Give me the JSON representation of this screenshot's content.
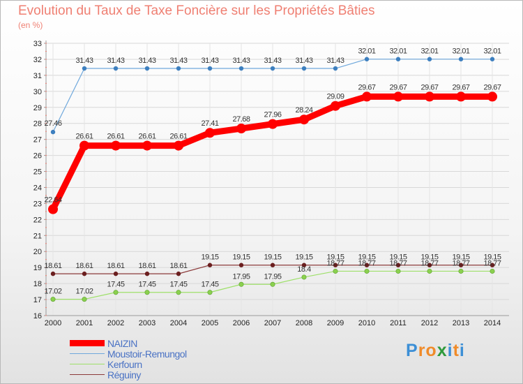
{
  "title": "Evolution du Taux de Taxe Foncière sur les Propriétés Bâties",
  "subtitle": "(en %)",
  "brand": {
    "letters": [
      "P",
      "r",
      "o",
      "x",
      "i",
      "t",
      "i"
    ],
    "colors": [
      "#3c8fd6",
      "#f08b2a",
      "#f08b2a",
      "#2f9a3c",
      "#3c8fd6",
      "#f08b2a",
      "#3c8fd6"
    ]
  },
  "chart_data": {
    "type": "line",
    "title": "Evolution du Taux de Taxe Foncière sur les Propriétés Bâties",
    "ylabel": "(en %)",
    "xlabel": "",
    "ylim": [
      16,
      33
    ],
    "yticks": [
      "16",
      "17",
      "18",
      "19",
      "20",
      "21",
      "22",
      "23",
      "24",
      "25",
      "26",
      "27",
      "28",
      "29",
      "30",
      "31",
      "32",
      "33"
    ],
    "x": [
      "2000",
      "2001",
      "2002",
      "2003",
      "2004",
      "2005",
      "2006",
      "2007",
      "2008",
      "2009",
      "2010",
      "2011",
      "2012",
      "2013",
      "2014"
    ],
    "series": [
      {
        "name": "NAIZIN",
        "color": "#ff0000",
        "width": 9,
        "marker": 7,
        "values": [
          22.64,
          26.61,
          26.61,
          26.61,
          26.61,
          27.41,
          27.68,
          27.96,
          28.24,
          29.09,
          29.67,
          29.67,
          29.67,
          29.67,
          29.67
        ],
        "labels": [
          "22.64",
          "26.61",
          "26.61",
          "26.61",
          "26.61",
          "27.41",
          "27.68",
          "27.96",
          "28.24",
          "29.09",
          "29.67",
          "29.67",
          "29.67",
          "29.67",
          "29.67"
        ]
      },
      {
        "name": "Moustoir-Remungol",
        "color": "#6fa8dc",
        "width": 1.2,
        "marker": 3.2,
        "values": [
          27.46,
          31.43,
          31.43,
          31.43,
          31.43,
          31.43,
          31.43,
          31.43,
          31.43,
          31.43,
          32.01,
          32.01,
          32.01,
          32.01,
          32.01
        ],
        "labels": [
          "27.46",
          "31.43",
          "31.43",
          "31.43",
          "31.43",
          "31.43",
          "31.43",
          "31.43",
          "31.43",
          "31.43",
          "32.01",
          "32.01",
          "32.01",
          "32.01",
          "32.01"
        ]
      },
      {
        "name": "Kerfourn",
        "color": "#9ee06a",
        "width": 1.2,
        "marker": 3.2,
        "values": [
          17.02,
          17.02,
          17.45,
          17.45,
          17.45,
          17.45,
          17.95,
          17.95,
          18.4,
          18.77,
          18.77,
          18.77,
          18.77,
          18.77,
          18.77
        ],
        "labels": [
          "17.02",
          "17.02",
          "17.45",
          "17.45",
          "17.45",
          "17.45",
          "17.95",
          "17.95",
          "18.4",
          "18.77",
          "18.77",
          "18.77",
          "18.77",
          "18.77",
          "18.77"
        ]
      },
      {
        "name": "Réguiny",
        "color": "#8b3a3a",
        "width": 1.2,
        "marker": 3.2,
        "values": [
          18.61,
          18.61,
          18.61,
          18.61,
          18.61,
          19.15,
          19.15,
          19.15,
          19.15,
          19.15,
          19.15,
          19.15,
          19.15,
          19.15,
          19.15
        ],
        "labels": [
          "18.61",
          "18.61",
          "18.61",
          "18.61",
          "18.61",
          "19.15",
          "19.15",
          "19.15",
          "19.15",
          "19.15",
          "19.15",
          "19.15",
          "19.15",
          "19.15",
          "19.15"
        ]
      }
    ],
    "legend": [
      "NAIZIN",
      "Moustoir-Remungol",
      "Kerfourn",
      "Réguiny"
    ]
  }
}
